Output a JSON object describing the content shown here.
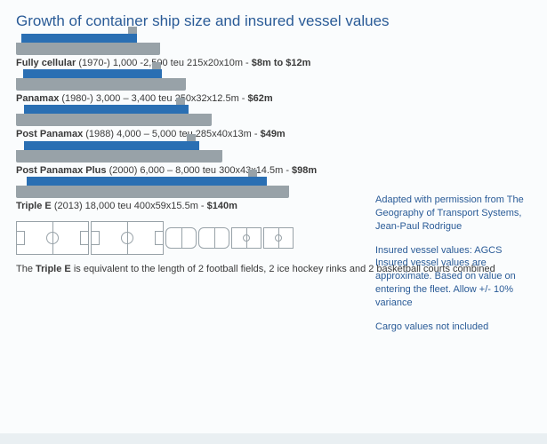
{
  "title": "Growth of container ship size and insured vessel values",
  "colors": {
    "title": "#2a5b97",
    "hull": "#98a2a8",
    "deck": "#2a6fb3",
    "text": "#3a3a3a",
    "side": "#2a5b97"
  },
  "ships": [
    {
      "name": "Fully cellular",
      "spec": "(1970-) 1,000 -2,500 teu 215x20x10m -",
      "value": "$8m to $12m",
      "widthPct": 28,
      "deckPct": 80,
      "bridgeLeftPct": 78
    },
    {
      "name": "Panamax",
      "spec": "(1980-) 3,000 – 3,400 teu 250x32x12.5m -",
      "value": "$62m",
      "widthPct": 33,
      "deckPct": 82,
      "bridgeLeftPct": 80
    },
    {
      "name": "Post Panamax",
      "spec": "(1988) 4,000 – 5,000 teu 285x40x13m -",
      "value": "$49m",
      "widthPct": 38,
      "deckPct": 84,
      "bridgeLeftPct": 82
    },
    {
      "name": "Post Panamax Plus",
      "spec": "(2000) 6,000 – 8,000 teu 300x43x14.5m -",
      "value": "$98m",
      "widthPct": 40,
      "deckPct": 85,
      "bridgeLeftPct": 83
    },
    {
      "name": "Triple E",
      "spec": "(2013) 18,000 teu 400x59x15.5m -",
      "value": "$140m",
      "widthPct": 53,
      "deckPct": 88,
      "bridgeLeftPct": 85
    }
  ],
  "sideNotes": [
    "Adapted with permission from The Geography of Transport Systems, Jean-Paul Rodrigue",
    "Insured vessel values: AGCS Insured vessel values are approximate. Based on value on entering the fleet. Allow +/- 10% variance",
    "Cargo values not included"
  ],
  "footerPrefix": "The ",
  "footerBold": "Triple E",
  "footerRest": " is equivalent to the length of 2 football fields, 2 ice hockey rinks and 2 basketball courts combined"
}
